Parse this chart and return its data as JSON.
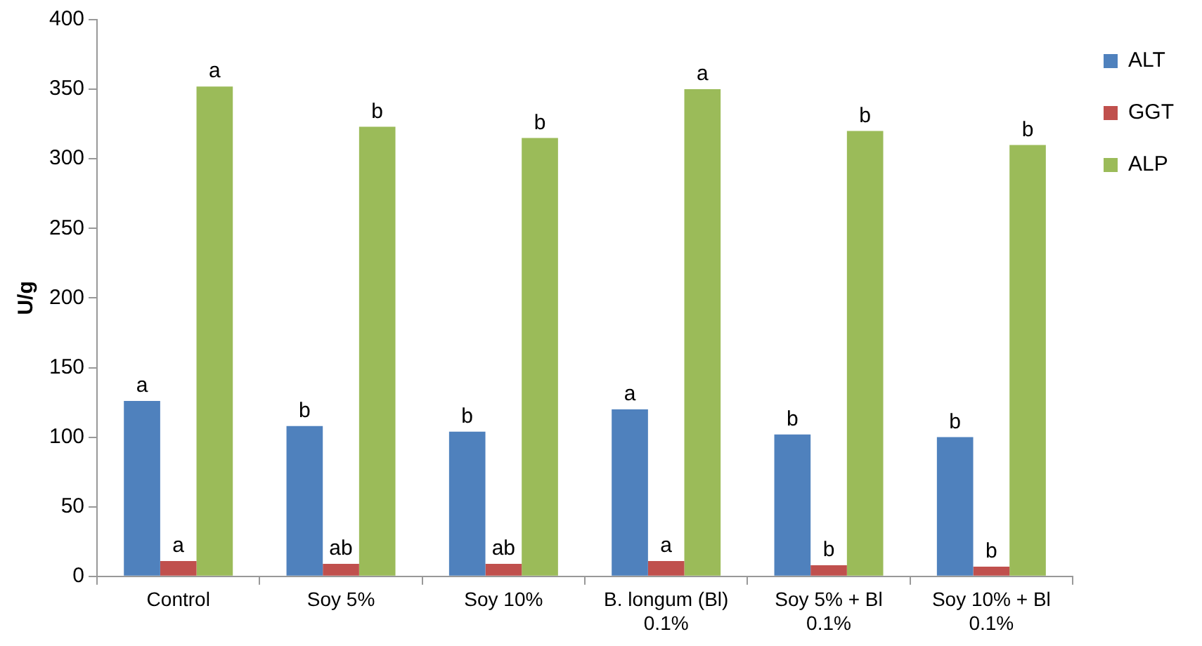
{
  "chart_data": {
    "type": "bar",
    "ylabel": "U/g",
    "categories": [
      "Control",
      "Soy 5%",
      "Soy 10%",
      "B. longum (Bl) 0.1%",
      "Soy 5% + Bl 0.1%",
      "Soy 10% + Bl 0.1%"
    ],
    "series": [
      {
        "name": "ALT",
        "color": "#4f81bd",
        "values": [
          126,
          108,
          104,
          120,
          102,
          100
        ],
        "value_labels": [
          "a",
          "b",
          "b",
          "a",
          "b",
          "b"
        ]
      },
      {
        "name": "GGT",
        "color": "#c0504d",
        "values": [
          11,
          9,
          9,
          11,
          8,
          7
        ],
        "value_labels": [
          "a",
          "ab",
          "ab",
          "a",
          "b",
          "b"
        ]
      },
      {
        "name": "ALP",
        "color": "#9bbb59",
        "values": [
          352,
          323,
          315,
          350,
          320,
          310
        ],
        "value_labels": [
          "a",
          "b",
          "b",
          "a",
          "b",
          "b"
        ]
      }
    ],
    "ylim": [
      0,
      400
    ],
    "yticks": [
      0,
      50,
      100,
      150,
      200,
      250,
      300,
      350,
      400
    ],
    "grid": false,
    "legend": "top right"
  }
}
